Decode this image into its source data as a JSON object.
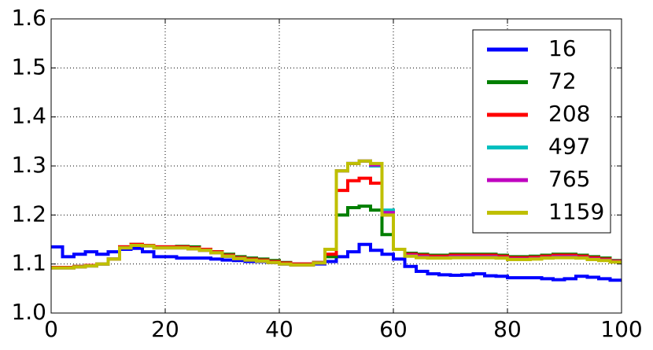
{
  "chart_data": {
    "type": "step",
    "x": [
      0,
      2,
      4,
      6,
      8,
      10,
      12,
      14,
      16,
      18,
      20,
      22,
      24,
      26,
      28,
      30,
      32,
      34,
      36,
      38,
      40,
      42,
      44,
      46,
      48,
      50,
      52,
      54,
      56,
      58,
      60,
      62,
      64,
      66,
      68,
      70,
      72,
      74,
      76,
      78,
      80,
      82,
      84,
      86,
      88,
      90,
      92,
      94,
      96,
      98
    ],
    "series": [
      {
        "name": "16",
        "color": "#0000ff",
        "values": [
          1.135,
          1.115,
          1.12,
          1.125,
          1.12,
          1.125,
          1.13,
          1.132,
          1.125,
          1.115,
          1.115,
          1.112,
          1.112,
          1.112,
          1.11,
          1.108,
          1.107,
          1.105,
          1.105,
          1.103,
          1.1,
          1.098,
          1.098,
          1.1,
          1.105,
          1.115,
          1.125,
          1.14,
          1.128,
          1.12,
          1.11,
          1.095,
          1.085,
          1.08,
          1.078,
          1.077,
          1.078,
          1.08,
          1.076,
          1.075,
          1.072,
          1.072,
          1.072,
          1.07,
          1.068,
          1.07,
          1.075,
          1.073,
          1.07,
          1.067
        ]
      },
      {
        "name": "72",
        "color": "#007f00",
        "values": [
          1.093,
          1.093,
          1.095,
          1.097,
          1.1,
          1.11,
          1.135,
          1.14,
          1.138,
          1.135,
          1.135,
          1.136,
          1.135,
          1.13,
          1.125,
          1.12,
          1.115,
          1.112,
          1.11,
          1.107,
          1.103,
          1.1,
          1.1,
          1.103,
          1.115,
          1.2,
          1.215,
          1.218,
          1.21,
          1.16,
          1.13,
          1.122,
          1.12,
          1.118,
          1.118,
          1.12,
          1.12,
          1.12,
          1.12,
          1.118,
          1.115,
          1.115,
          1.116,
          1.118,
          1.12,
          1.12,
          1.118,
          1.115,
          1.112,
          1.107
        ]
      },
      {
        "name": "208",
        "color": "#ff0000",
        "values": [
          1.093,
          1.093,
          1.095,
          1.097,
          1.1,
          1.11,
          1.135,
          1.14,
          1.138,
          1.135,
          1.135,
          1.135,
          1.133,
          1.13,
          1.125,
          1.118,
          1.113,
          1.11,
          1.108,
          1.105,
          1.102,
          1.1,
          1.1,
          1.103,
          1.12,
          1.25,
          1.27,
          1.275,
          1.265,
          1.2,
          1.13,
          1.12,
          1.118,
          1.116,
          1.116,
          1.118,
          1.118,
          1.118,
          1.118,
          1.116,
          1.113,
          1.113,
          1.114,
          1.116,
          1.118,
          1.118,
          1.116,
          1.113,
          1.11,
          1.106
        ]
      },
      {
        "name": "497",
        "color": "#00bfbf",
        "values": [
          1.092,
          1.092,
          1.094,
          1.096,
          1.1,
          1.11,
          1.133,
          1.138,
          1.137,
          1.133,
          1.133,
          1.133,
          1.131,
          1.128,
          1.123,
          1.116,
          1.111,
          1.108,
          1.106,
          1.103,
          1.1,
          1.098,
          1.098,
          1.102,
          1.13,
          1.29,
          1.305,
          1.31,
          1.3,
          1.21,
          1.13,
          1.118,
          1.115,
          1.113,
          1.113,
          1.115,
          1.115,
          1.115,
          1.115,
          1.113,
          1.11,
          1.11,
          1.111,
          1.113,
          1.115,
          1.115,
          1.113,
          1.11,
          1.108,
          1.105
        ]
      },
      {
        "name": "765",
        "color": "#bf00bf",
        "values": [
          1.092,
          1.092,
          1.094,
          1.096,
          1.1,
          1.11,
          1.133,
          1.138,
          1.137,
          1.133,
          1.133,
          1.133,
          1.131,
          1.128,
          1.123,
          1.116,
          1.111,
          1.108,
          1.106,
          1.103,
          1.1,
          1.098,
          1.098,
          1.102,
          1.13,
          1.29,
          1.305,
          1.31,
          1.302,
          1.205,
          1.13,
          1.118,
          1.115,
          1.113,
          1.113,
          1.115,
          1.115,
          1.115,
          1.115,
          1.113,
          1.11,
          1.11,
          1.111,
          1.113,
          1.115,
          1.115,
          1.113,
          1.11,
          1.108,
          1.105
        ]
      },
      {
        "name": "1159",
        "color": "#bfbf00",
        "values": [
          1.092,
          1.092,
          1.094,
          1.096,
          1.1,
          1.11,
          1.133,
          1.138,
          1.137,
          1.133,
          1.133,
          1.133,
          1.131,
          1.128,
          1.123,
          1.116,
          1.111,
          1.108,
          1.106,
          1.103,
          1.1,
          1.098,
          1.098,
          1.102,
          1.13,
          1.29,
          1.305,
          1.31,
          1.305,
          1.2,
          1.13,
          1.116,
          1.113,
          1.112,
          1.112,
          1.113,
          1.113,
          1.113,
          1.113,
          1.112,
          1.109,
          1.109,
          1.11,
          1.112,
          1.113,
          1.113,
          1.112,
          1.109,
          1.107,
          1.104
        ]
      }
    ],
    "xlim": [
      0,
      100
    ],
    "xticks": [
      0,
      20,
      40,
      60,
      80,
      100
    ],
    "ylim": [
      1.0,
      1.6
    ],
    "yticks": [
      {
        "value": 1.0,
        "label": "1.0"
      },
      1.1,
      1.2,
      1.3,
      1.4,
      1.5,
      1.6
    ],
    "grid": true,
    "legend": "upper-right"
  }
}
